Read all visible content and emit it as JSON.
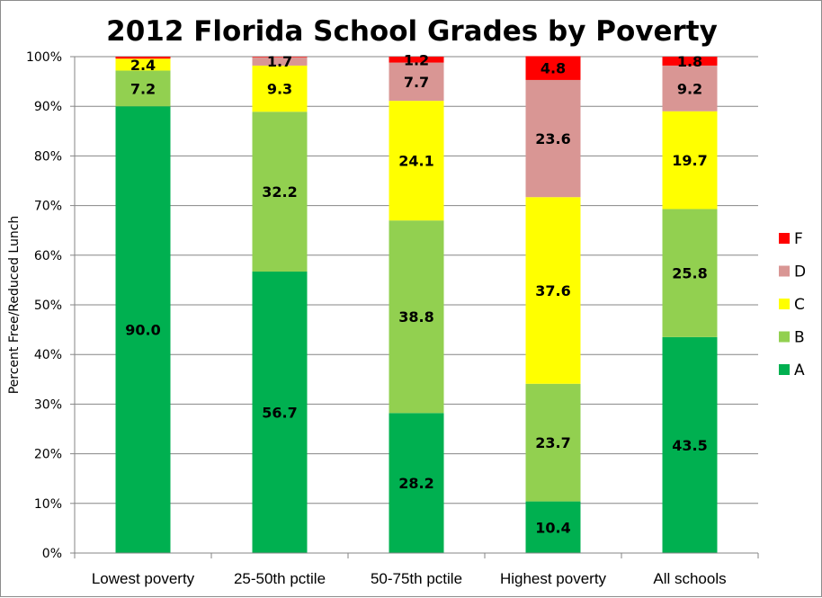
{
  "chart_data": {
    "type": "bar",
    "stacked": true,
    "percent_stacked": true,
    "title": "2012 Florida School Grades by Poverty",
    "xlabel": "",
    "ylabel": "Percent Free/Reduced Lunch",
    "ylim": [
      0,
      100
    ],
    "y_ticks": [
      "0%",
      "10%",
      "20%",
      "30%",
      "40%",
      "50%",
      "60%",
      "70%",
      "80%",
      "90%",
      "100%"
    ],
    "grid": true,
    "legend_position": "right",
    "categories": [
      "Lowest poverty",
      "25-50th pctile",
      "50-75th pctile",
      "Highest poverty",
      "All schools"
    ],
    "series": [
      {
        "name": "A",
        "color": "#00b050",
        "values": [
          90.0,
          56.7,
          28.2,
          10.4,
          43.5
        ],
        "labels": [
          "90.0",
          "56.7",
          "28.2",
          "10.4",
          "43.5"
        ]
      },
      {
        "name": "B",
        "color": "#92d050",
        "values": [
          7.2,
          32.2,
          38.8,
          23.7,
          25.8
        ],
        "labels": [
          "7.2",
          "32.2",
          "38.8",
          "23.7",
          "25.8"
        ]
      },
      {
        "name": "C",
        "color": "#ffff00",
        "values": [
          2.4,
          9.3,
          24.1,
          37.6,
          19.7
        ],
        "labels": [
          "2.4",
          "9.3",
          "24.1",
          "37.6",
          "19.7"
        ]
      },
      {
        "name": "D",
        "color": "#d99694",
        "values": [
          0.0,
          1.7,
          7.7,
          23.6,
          9.2
        ],
        "labels": [
          "",
          "1.7",
          "7.7",
          "23.6",
          "9.2"
        ]
      },
      {
        "name": "F",
        "color": "#ff0000",
        "values": [
          0.4,
          0.1,
          1.2,
          4.8,
          1.8
        ],
        "labels": [
          "",
          "",
          "1.2",
          "4.8",
          "1.8"
        ]
      }
    ],
    "legend_order": [
      "F",
      "D",
      "C",
      "B",
      "A"
    ]
  }
}
